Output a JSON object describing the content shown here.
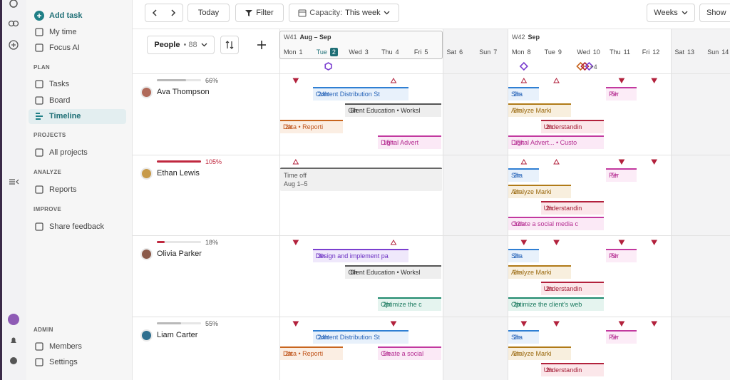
{
  "sidebar": {
    "quick": [
      "Add task",
      "My time",
      "Focus AI"
    ],
    "sections": [
      {
        "heading": "PLAN",
        "items": [
          "Tasks",
          "Board",
          "Timeline"
        ]
      },
      {
        "heading": "PROJECTS",
        "items": [
          "All projects"
        ]
      },
      {
        "heading": "ANALYZE",
        "items": [
          "Reports"
        ]
      },
      {
        "heading": "IMPROVE",
        "items": [
          "Share feedback"
        ]
      },
      {
        "heading": "ADMIN",
        "items": [
          "Members",
          "Settings"
        ]
      }
    ]
  },
  "toolbar": {
    "today": "Today",
    "filter": "Filter",
    "capacity_label": "Capacity:",
    "capacity_value": "This week",
    "scale": "Weeks",
    "show": "Show"
  },
  "people_selector": {
    "label": "People",
    "count": "• 88"
  },
  "weeks": [
    {
      "week": "W41",
      "range": "Aug – Sep"
    },
    {
      "week": "W42",
      "range": "Sep"
    }
  ],
  "days": [
    {
      "day": "Mon",
      "date": "1"
    },
    {
      "day": "Tue",
      "date": "2"
    },
    {
      "day": "Wed",
      "date": "3"
    },
    {
      "day": "Thu",
      "date": "4"
    },
    {
      "day": "Fri",
      "date": "5"
    },
    {
      "day": "Sat",
      "date": "6"
    },
    {
      "day": "Sun",
      "date": "7"
    },
    {
      "day": "Mon",
      "date": "8"
    },
    {
      "day": "Tue",
      "date": "9"
    },
    {
      "day": "Wed",
      "date": "10"
    },
    {
      "day": "Thu",
      "date": "11"
    },
    {
      "day": "Fri",
      "date": "12"
    },
    {
      "day": "Sat",
      "date": "13"
    },
    {
      "day": "Sun",
      "date": "14"
    }
  ],
  "milestones_more": "+4",
  "people": [
    {
      "name": "Ava Thompson",
      "capacity": "66%",
      "tasks": [
        {
          "label": "Content Distribution St",
          "hours": "24h"
        },
        {
          "label": "Client Education • Worksl",
          "hours": "6h"
        },
        {
          "label": "Data • Reporti",
          "hours": "2h"
        },
        {
          "label": "Digital Advert",
          "hours": "15h"
        },
        {
          "label": "Sha",
          "hours": "2h"
        },
        {
          "label": "Per",
          "hours": "5h"
        },
        {
          "label": "Analyze Marki",
          "hours": "2h"
        },
        {
          "label": "Understandin",
          "hours": "2h"
        },
        {
          "label": "Digital Advert... • Custo",
          "hours": "15h"
        }
      ]
    },
    {
      "name": "Ethan Lewis",
      "capacity": "105%",
      "time_off": {
        "label": "Time off",
        "dates": "Aug 1–5"
      },
      "tasks": [
        {
          "label": "Sha",
          "hours": "2h"
        },
        {
          "label": "Per",
          "hours": "5h"
        },
        {
          "label": "Analyze Marki",
          "hours": "2h"
        },
        {
          "label": "Understandin",
          "hours": "2h"
        },
        {
          "label": "Create a social media c",
          "hours": "32h"
        }
      ]
    },
    {
      "name": "Olivia Parker",
      "capacity": "18%",
      "tasks": [
        {
          "label": "Design and implement pa",
          "hours": "3h"
        },
        {
          "label": "Client Education • Worksl",
          "hours": "6h"
        },
        {
          "label": "Optimize the c",
          "hours": "2h"
        },
        {
          "label": "Sha",
          "hours": "2h"
        },
        {
          "label": "Per",
          "hours": "5h"
        },
        {
          "label": "Analyze Marki",
          "hours": "2h"
        },
        {
          "label": "Understandin",
          "hours": "2h"
        },
        {
          "label": "Optimize the client's web",
          "hours": "2h"
        }
      ]
    },
    {
      "name": "Liam Carter",
      "capacity": "55%",
      "tasks": [
        {
          "label": "Content Distribution St",
          "hours": "24h"
        },
        {
          "label": "Data • Reporti",
          "hours": "2h"
        },
        {
          "label": "Create a social",
          "hours": "5h"
        },
        {
          "label": "Sha",
          "hours": "2h"
        },
        {
          "label": "Per",
          "hours": "5h"
        },
        {
          "label": "Analyze Marki",
          "hours": "2h"
        },
        {
          "label": "Understandin",
          "hours": "2h"
        }
      ]
    }
  ]
}
